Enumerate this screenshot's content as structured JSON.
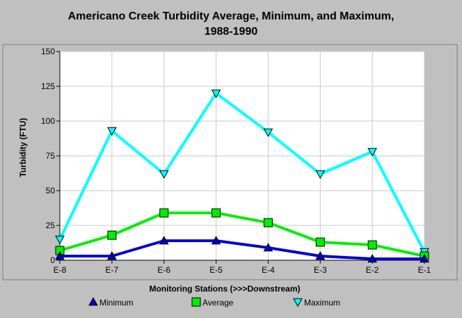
{
  "chart_data": {
    "type": "line",
    "title": "Americano Creek Turbidity Average, Minimum, and Maximum,",
    "subtitle": "1988-1990",
    "xlabel": "Monitoring Stations (>>>Downstream)",
    "ylabel": "Turbidity (FTU)",
    "categories": [
      "E-8",
      "E-7",
      "E-6",
      "E-5",
      "E-4",
      "E-3",
      "E-2",
      "E-1"
    ],
    "ylim": [
      0,
      150
    ],
    "yticks": [
      "0",
      "25",
      "50",
      "75",
      "100",
      "125",
      "150"
    ],
    "grid": true,
    "legend_position": "bottom",
    "series": [
      {
        "name": "Minimum",
        "color": "#0000cc",
        "marker": "triangle-up",
        "values": [
          3,
          3,
          14,
          14,
          9,
          3,
          1,
          1
        ]
      },
      {
        "name": "Average",
        "color": "#00ee00",
        "marker": "square",
        "values": [
          7,
          18,
          34,
          34,
          27,
          13,
          11,
          3
        ]
      },
      {
        "name": "Maximum",
        "color": "#00ffff",
        "marker": "triangle-down",
        "values": [
          15,
          93,
          62,
          120,
          92,
          62,
          78,
          6
        ]
      }
    ]
  }
}
